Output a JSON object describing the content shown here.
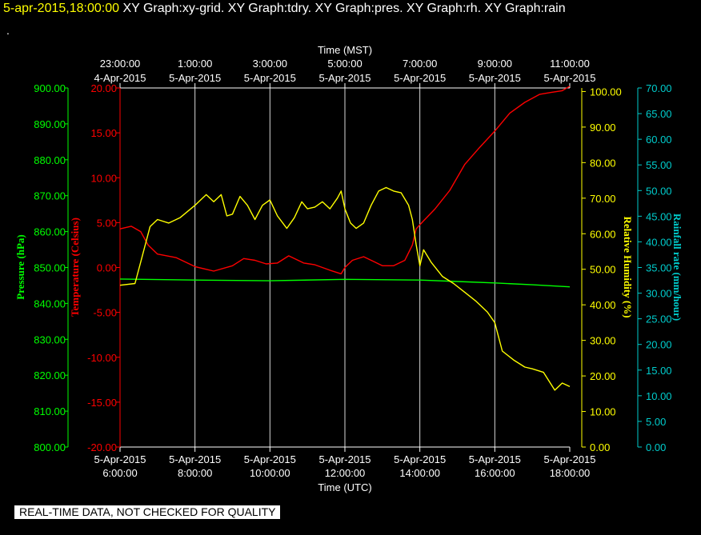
{
  "header": {
    "date": "5-apr-2015,18:00:00",
    "graphs": "XY Graph:xy-grid.  XY Graph:tdry.  XY Graph:pres.  XY Graph:rh.  XY Graph:rain",
    "dot": "."
  },
  "footer": {
    "quality_note": "REAL-TIME DATA, NOT CHECKED FOR QUALITY"
  },
  "colors": {
    "background": "#000000",
    "grid": "#ffffff",
    "temperature": "#ff0000",
    "pressure": "#00ff00",
    "humidity": "#ffff00",
    "rain": "#00cccc"
  },
  "chart_data": {
    "type": "line",
    "top_axis": {
      "label": "Time (MST)",
      "ticks": [
        {
          "time": "23:00:00",
          "date": "4-Apr-2015"
        },
        {
          "time": "1:00:00",
          "date": "5-Apr-2015"
        },
        {
          "time": "3:00:00",
          "date": "5-Apr-2015"
        },
        {
          "time": "5:00:00",
          "date": "5-Apr-2015"
        },
        {
          "time": "7:00:00",
          "date": "5-Apr-2015"
        },
        {
          "time": "9:00:00",
          "date": "5-Apr-2015"
        },
        {
          "time": "11:00:00",
          "date": "5-Apr-2015"
        }
      ]
    },
    "bottom_axis": {
      "label": "Time (UTC)",
      "range_hours": [
        6,
        18
      ],
      "ticks": [
        {
          "date": "5-Apr-2015",
          "time": "6:00:00"
        },
        {
          "date": "5-Apr-2015",
          "time": "8:00:00"
        },
        {
          "date": "5-Apr-2015",
          "time": "10:00:00"
        },
        {
          "date": "5-Apr-2015",
          "time": "12:00:00"
        },
        {
          "date": "5-Apr-2015",
          "time": "14:00:00"
        },
        {
          "date": "5-Apr-2015",
          "time": "16:00:00"
        },
        {
          "date": "5-Apr-2015",
          "time": "18:00:00"
        }
      ]
    },
    "y_axes": {
      "pressure": {
        "label": "Pressure (hPa)",
        "range": [
          800,
          900
        ],
        "ticks": [
          "900.00",
          "890.00",
          "880.00",
          "870.00",
          "860.00",
          "850.00",
          "840.00",
          "830.00",
          "820.00",
          "810.00",
          "800.00"
        ]
      },
      "temperature": {
        "label": "Temperature (Celsius)",
        "range": [
          -20,
          20
        ],
        "ticks": [
          "20.00",
          "15.00",
          "10.00",
          "5.00",
          "0.00",
          "-5.00",
          "-10.00",
          "-15.00",
          "-20.00"
        ]
      },
      "humidity": {
        "label": "Relative Humidity (%)",
        "range": [
          0,
          101
        ],
        "ticks": [
          "100.00",
          "90.00",
          "80.00",
          "70.00",
          "60.00",
          "50.00",
          "40.00",
          "30.00",
          "20.00",
          "10.00",
          "0.00"
        ]
      },
      "rain": {
        "label": "Rainfall rate (mm/hour)",
        "range": [
          0,
          70
        ],
        "ticks": [
          "70.00",
          "65.00",
          "60.00",
          "55.00",
          "50.00",
          "45.00",
          "40.00",
          "35.00",
          "30.00",
          "25.00",
          "20.00",
          "15.00",
          "10.00",
          "5.00",
          "0.00"
        ]
      }
    },
    "series": [
      {
        "key": "temperature",
        "axis": "temperature",
        "x": [
          6.0,
          6.3,
          6.55,
          6.75,
          7.0,
          7.5,
          8.0,
          8.5,
          9.0,
          9.3,
          9.6,
          9.9,
          10.2,
          10.5,
          10.9,
          11.2,
          11.6,
          11.9,
          12.0,
          12.2,
          12.5,
          12.8,
          13.0,
          13.3,
          13.6,
          13.8,
          13.9,
          14.1,
          14.4,
          14.8,
          15.2,
          15.6,
          16.0,
          16.4,
          16.8,
          17.2,
          17.5,
          17.8,
          18.0
        ],
        "y": [
          4.3,
          4.6,
          4.0,
          2.5,
          1.5,
          1.1,
          0.1,
          -0.4,
          0.2,
          1.0,
          0.8,
          0.4,
          0.5,
          1.3,
          0.5,
          0.3,
          -0.3,
          -0.7,
          0.0,
          0.8,
          1.2,
          0.6,
          0.2,
          0.2,
          0.8,
          2.5,
          4.3,
          5.2,
          6.5,
          8.6,
          11.5,
          13.4,
          15.2,
          17.2,
          18.4,
          19.3,
          19.5,
          19.7,
          20.2
        ]
      },
      {
        "key": "pressure",
        "axis": "pressure",
        "x": [
          6.0,
          8.0,
          10.0,
          12.0,
          14.0,
          15.0,
          16.0,
          17.0,
          18.0
        ],
        "y": [
          846.8,
          846.5,
          846.3,
          846.7,
          846.5,
          846.1,
          845.7,
          845.2,
          844.6
        ]
      },
      {
        "key": "humidity",
        "axis": "humidity",
        "x": [
          6.0,
          6.4,
          6.55,
          6.8,
          7.0,
          7.3,
          7.6,
          8.0,
          8.3,
          8.5,
          8.7,
          8.85,
          9.0,
          9.2,
          9.4,
          9.6,
          9.8,
          10.0,
          10.2,
          10.45,
          10.65,
          10.85,
          11.0,
          11.2,
          11.4,
          11.6,
          11.8,
          11.9,
          12.0,
          12.15,
          12.3,
          12.5,
          12.7,
          12.9,
          13.1,
          13.3,
          13.5,
          13.7,
          13.8,
          13.9,
          14.0,
          14.1,
          14.3,
          14.6,
          14.9,
          15.2,
          15.5,
          15.8,
          16.0,
          16.2,
          16.5,
          16.8,
          17.0,
          17.3,
          17.6,
          17.8,
          18.0
        ],
        "y": [
          45.5,
          46.0,
          52.0,
          62.0,
          64.0,
          63.0,
          64.5,
          68.0,
          71.0,
          69.0,
          71.0,
          65.0,
          65.5,
          70.5,
          68.0,
          64.0,
          68.0,
          69.5,
          65.0,
          61.5,
          64.5,
          69.0,
          67.0,
          67.5,
          69.0,
          67.0,
          70.0,
          72.0,
          67.0,
          63.0,
          61.5,
          63.0,
          68.0,
          72.0,
          73.0,
          72.0,
          71.5,
          68.0,
          64.0,
          57.0,
          51.0,
          55.5,
          52.0,
          48.0,
          46.0,
          43.5,
          41.0,
          38.0,
          35.0,
          27.0,
          24.5,
          22.5,
          22.0,
          21.0,
          16.0,
          18.0,
          17.0
        ]
      }
    ]
  }
}
